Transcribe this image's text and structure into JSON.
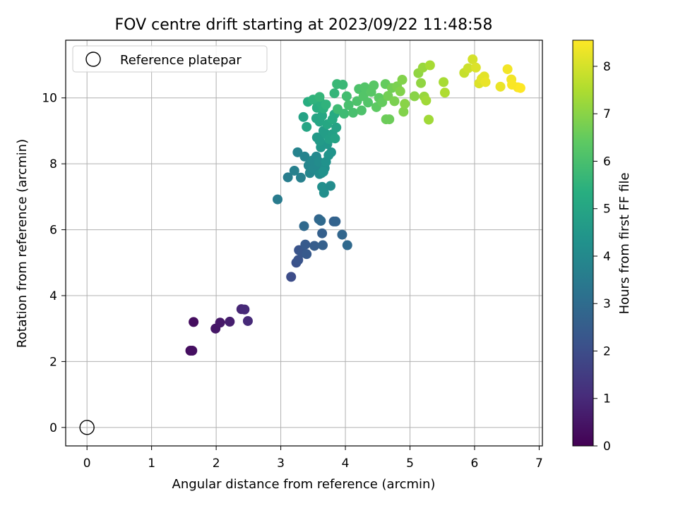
{
  "chart_data": {
    "type": "scatter",
    "title": "FOV centre drift starting at 2023/09/22 11:48:58",
    "xlabel": "Angular distance from reference (arcmin)",
    "ylabel": "Rotation from reference (arcmin)",
    "xlim": [
      -0.33,
      7.05
    ],
    "ylim": [
      -0.56,
      11.75
    ],
    "xticks": [
      "0",
      "1",
      "2",
      "3",
      "4",
      "5",
      "6",
      "7"
    ],
    "yticks": [
      "0",
      "2",
      "4",
      "6",
      "8",
      "10"
    ],
    "grid": true,
    "legend": {
      "placement": "top-left",
      "entries": [
        {
          "label": "Reference platepar",
          "marker": "hollow-circle",
          "x": 0,
          "y": 0
        }
      ]
    },
    "colorbar": {
      "label": "Hours from first FF file",
      "range": [
        0,
        8.55
      ],
      "ticks": [
        "0",
        "1",
        "2",
        "3",
        "4",
        "5",
        "6",
        "7",
        "8"
      ],
      "colormap": "viridis"
    },
    "series": [
      {
        "points": [
          {
            "x": 1.65,
            "y": 3.2,
            "c": 0.3
          },
          {
            "x": 1.6,
            "y": 2.33,
            "c": 0.3
          },
          {
            "x": 1.63,
            "y": 2.33,
            "c": 0.35
          },
          {
            "x": 1.99,
            "y": 3.0,
            "c": 0.5
          },
          {
            "x": 2.06,
            "y": 3.18,
            "c": 0.55
          },
          {
            "x": 2.21,
            "y": 3.21,
            "c": 0.7
          },
          {
            "x": 2.39,
            "y": 3.59,
            "c": 0.9
          },
          {
            "x": 2.44,
            "y": 3.58,
            "c": 1.0
          },
          {
            "x": 2.49,
            "y": 3.23,
            "c": 1.0
          },
          {
            "x": 3.16,
            "y": 4.57,
            "c": 2.0
          },
          {
            "x": 3.24,
            "y": 5.0,
            "c": 2.1
          },
          {
            "x": 3.27,
            "y": 5.08,
            "c": 2.2
          },
          {
            "x": 3.28,
            "y": 5.38,
            "c": 2.2
          },
          {
            "x": 3.33,
            "y": 5.3,
            "c": 2.3
          },
          {
            "x": 3.38,
            "y": 5.55,
            "c": 2.4
          },
          {
            "x": 3.4,
            "y": 5.26,
            "c": 2.4
          },
          {
            "x": 3.52,
            "y": 5.51,
            "c": 2.5
          },
          {
            "x": 3.65,
            "y": 5.53,
            "c": 2.6
          },
          {
            "x": 3.64,
            "y": 5.89,
            "c": 2.6
          },
          {
            "x": 3.59,
            "y": 6.32,
            "c": 2.8
          },
          {
            "x": 3.62,
            "y": 6.27,
            "c": 2.9
          },
          {
            "x": 3.36,
            "y": 6.11,
            "c": 2.9
          },
          {
            "x": 3.82,
            "y": 6.25,
            "c": 2.6
          },
          {
            "x": 3.85,
            "y": 6.25,
            "c": 2.7
          },
          {
            "x": 3.95,
            "y": 5.85,
            "c": 2.8
          },
          {
            "x": 4.03,
            "y": 5.53,
            "c": 2.9
          },
          {
            "x": 2.95,
            "y": 6.92,
            "c": 3.5
          },
          {
            "x": 3.11,
            "y": 7.59,
            "c": 3.6
          },
          {
            "x": 3.21,
            "y": 7.79,
            "c": 3.7
          },
          {
            "x": 3.31,
            "y": 7.58,
            "c": 3.7
          },
          {
            "x": 3.26,
            "y": 8.35,
            "c": 3.8
          },
          {
            "x": 3.37,
            "y": 8.22,
            "c": 3.8
          },
          {
            "x": 3.43,
            "y": 7.95,
            "c": 3.9
          },
          {
            "x": 3.45,
            "y": 7.72,
            "c": 3.9
          },
          {
            "x": 3.49,
            "y": 8.1,
            "c": 4.0
          },
          {
            "x": 3.51,
            "y": 7.85,
            "c": 4.0
          },
          {
            "x": 3.55,
            "y": 8.22,
            "c": 4.0
          },
          {
            "x": 3.57,
            "y": 7.93,
            "c": 4.0
          },
          {
            "x": 3.59,
            "y": 8.06,
            "c": 4.1
          },
          {
            "x": 3.6,
            "y": 7.69,
            "c": 4.1
          },
          {
            "x": 3.63,
            "y": 7.72,
            "c": 4.1
          },
          {
            "x": 3.64,
            "y": 7.3,
            "c": 4.2
          },
          {
            "x": 3.67,
            "y": 7.12,
            "c": 4.2
          },
          {
            "x": 3.68,
            "y": 7.87,
            "c": 4.2
          },
          {
            "x": 3.7,
            "y": 8.06,
            "c": 4.3
          },
          {
            "x": 3.66,
            "y": 7.76,
            "c": 4.3
          },
          {
            "x": 3.77,
            "y": 7.33,
            "c": 4.1
          },
          {
            "x": 3.74,
            "y": 8.26,
            "c": 4.4
          },
          {
            "x": 3.78,
            "y": 8.35,
            "c": 4.4
          },
          {
            "x": 3.62,
            "y": 8.5,
            "c": 4.5
          },
          {
            "x": 3.72,
            "y": 8.6,
            "c": 4.5
          },
          {
            "x": 3.56,
            "y": 8.8,
            "c": 4.6
          },
          {
            "x": 3.6,
            "y": 8.7,
            "c": 4.6
          },
          {
            "x": 3.66,
            "y": 9.0,
            "c": 4.7
          },
          {
            "x": 3.7,
            "y": 8.9,
            "c": 4.7
          },
          {
            "x": 3.75,
            "y": 8.75,
            "c": 4.8
          },
          {
            "x": 3.8,
            "y": 8.9,
            "c": 4.8
          },
          {
            "x": 3.84,
            "y": 8.77,
            "c": 4.9
          },
          {
            "x": 3.86,
            "y": 9.1,
            "c": 4.9
          },
          {
            "x": 3.35,
            "y": 9.42,
            "c": 4.9
          },
          {
            "x": 3.4,
            "y": 9.12,
            "c": 5.0
          },
          {
            "x": 3.55,
            "y": 9.38,
            "c": 5.0
          },
          {
            "x": 3.6,
            "y": 9.28,
            "c": 5.0
          },
          {
            "x": 3.64,
            "y": 9.46,
            "c": 5.1
          },
          {
            "x": 3.72,
            "y": 9.2,
            "c": 5.1
          },
          {
            "x": 3.8,
            "y": 9.35,
            "c": 5.2
          },
          {
            "x": 3.83,
            "y": 9.5,
            "c": 5.2
          },
          {
            "x": 3.56,
            "y": 9.7,
            "c": 5.3
          },
          {
            "x": 3.62,
            "y": 9.85,
            "c": 5.4
          },
          {
            "x": 3.66,
            "y": 9.68,
            "c": 5.4
          },
          {
            "x": 3.7,
            "y": 9.8,
            "c": 5.5
          },
          {
            "x": 3.42,
            "y": 9.88,
            "c": 5.3
          },
          {
            "x": 3.5,
            "y": 9.95,
            "c": 5.5
          },
          {
            "x": 3.6,
            "y": 10.03,
            "c": 5.6
          },
          {
            "x": 3.83,
            "y": 10.14,
            "c": 5.6
          },
          {
            "x": 3.87,
            "y": 10.42,
            "c": 5.7
          },
          {
            "x": 3.96,
            "y": 10.4,
            "c": 5.7
          },
          {
            "x": 3.88,
            "y": 9.66,
            "c": 5.8
          },
          {
            "x": 3.98,
            "y": 9.52,
            "c": 5.8
          },
          {
            "x": 4.02,
            "y": 10.05,
            "c": 5.9
          },
          {
            "x": 4.05,
            "y": 9.78,
            "c": 6.0
          },
          {
            "x": 4.12,
            "y": 9.55,
            "c": 6.0
          },
          {
            "x": 4.18,
            "y": 9.9,
            "c": 6.1
          },
          {
            "x": 4.21,
            "y": 10.27,
            "c": 6.1
          },
          {
            "x": 4.25,
            "y": 9.62,
            "c": 6.1
          },
          {
            "x": 4.28,
            "y": 10.05,
            "c": 6.2
          },
          {
            "x": 4.3,
            "y": 10.32,
            "c": 6.2
          },
          {
            "x": 4.35,
            "y": 9.86,
            "c": 6.2
          },
          {
            "x": 4.4,
            "y": 10.18,
            "c": 6.3
          },
          {
            "x": 4.44,
            "y": 10.38,
            "c": 6.3
          },
          {
            "x": 4.48,
            "y": 9.72,
            "c": 6.4
          },
          {
            "x": 4.52,
            "y": 10.0,
            "c": 6.4
          },
          {
            "x": 4.57,
            "y": 9.87,
            "c": 6.5
          },
          {
            "x": 4.62,
            "y": 10.42,
            "c": 6.5
          },
          {
            "x": 4.63,
            "y": 9.35,
            "c": 6.6
          },
          {
            "x": 4.68,
            "y": 9.35,
            "c": 6.6
          },
          {
            "x": 4.66,
            "y": 10.06,
            "c": 6.7
          },
          {
            "x": 4.72,
            "y": 10.3,
            "c": 6.7
          },
          {
            "x": 4.76,
            "y": 9.9,
            "c": 6.8
          },
          {
            "x": 4.8,
            "y": 10.35,
            "c": 6.8
          },
          {
            "x": 4.85,
            "y": 10.2,
            "c": 6.9
          },
          {
            "x": 4.88,
            "y": 10.55,
            "c": 6.9
          },
          {
            "x": 4.9,
            "y": 9.58,
            "c": 6.9
          },
          {
            "x": 4.92,
            "y": 9.82,
            "c": 7.0
          },
          {
            "x": 5.07,
            "y": 10.05,
            "c": 7.0
          },
          {
            "x": 5.13,
            "y": 10.75,
            "c": 7.1
          },
          {
            "x": 5.17,
            "y": 10.45,
            "c": 7.1
          },
          {
            "x": 5.2,
            "y": 10.92,
            "c": 7.2
          },
          {
            "x": 5.22,
            "y": 10.04,
            "c": 7.2
          },
          {
            "x": 5.25,
            "y": 9.92,
            "c": 7.3
          },
          {
            "x": 5.29,
            "y": 9.34,
            "c": 7.3
          },
          {
            "x": 5.31,
            "y": 10.99,
            "c": 7.4
          },
          {
            "x": 5.52,
            "y": 10.48,
            "c": 7.4
          },
          {
            "x": 5.54,
            "y": 10.16,
            "c": 7.5
          },
          {
            "x": 5.84,
            "y": 10.76,
            "c": 7.8
          },
          {
            "x": 5.9,
            "y": 10.9,
            "c": 7.9
          },
          {
            "x": 5.97,
            "y": 11.17,
            "c": 8.0
          },
          {
            "x": 6.02,
            "y": 10.92,
            "c": 8.1
          },
          {
            "x": 6.07,
            "y": 10.44,
            "c": 8.1
          },
          {
            "x": 6.11,
            "y": 10.58,
            "c": 8.2
          },
          {
            "x": 6.15,
            "y": 10.65,
            "c": 8.2
          },
          {
            "x": 6.17,
            "y": 10.48,
            "c": 8.3
          },
          {
            "x": 6.4,
            "y": 10.34,
            "c": 8.3
          },
          {
            "x": 6.51,
            "y": 10.87,
            "c": 8.4
          },
          {
            "x": 6.57,
            "y": 10.56,
            "c": 8.4
          },
          {
            "x": 6.58,
            "y": 10.4,
            "c": 8.5
          },
          {
            "x": 6.67,
            "y": 10.32,
            "c": 8.5
          },
          {
            "x": 6.71,
            "y": 10.3,
            "c": 8.55
          }
        ]
      }
    ]
  }
}
